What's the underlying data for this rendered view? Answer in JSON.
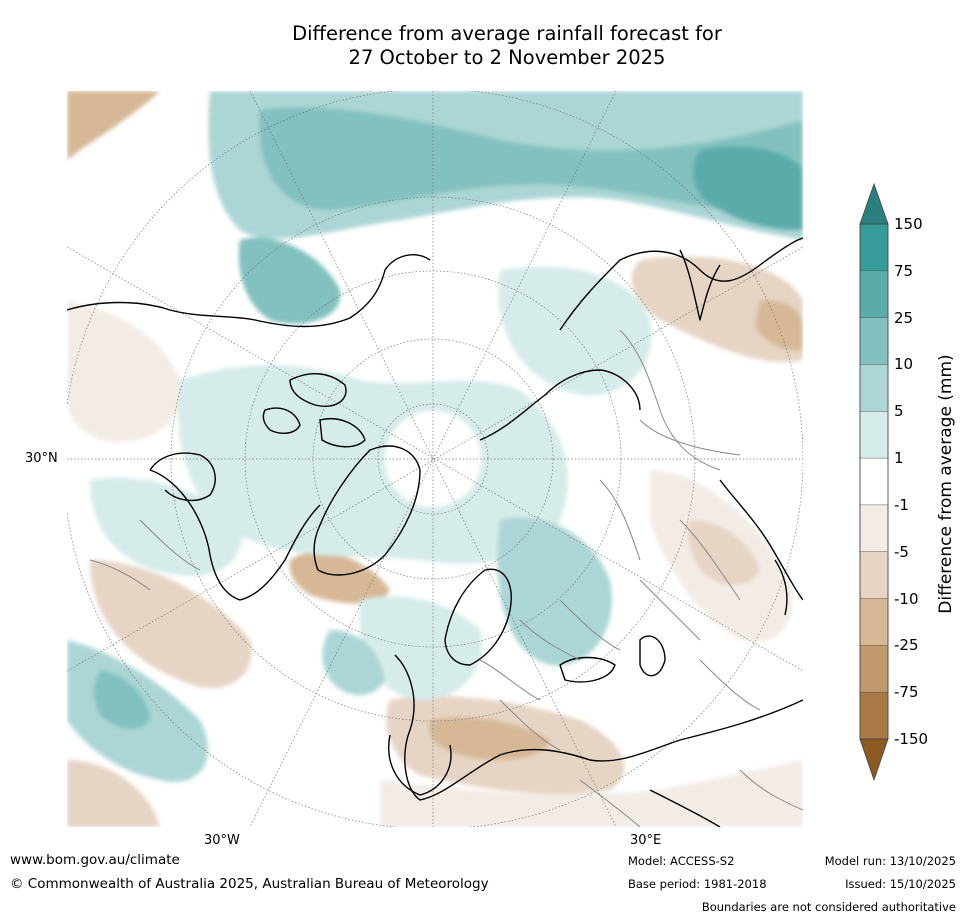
{
  "title": {
    "line1": "Difference from average rainfall forecast for",
    "line2": "27 October to 2 November 2025"
  },
  "map_labels": {
    "lat_label": "30°N",
    "lon_west_label": "30°W",
    "lon_east_label": "30°E"
  },
  "colorbar": {
    "title": "Difference from average (mm)",
    "ticks": [
      "150",
      "75",
      "25",
      "10",
      "5",
      "1",
      "-1",
      "-5",
      "-10",
      "-25",
      "-75",
      "-150"
    ],
    "colors": [
      "#2a7f7f",
      "#359c9a",
      "#5aacab",
      "#82c1c0",
      "#acd6d5",
      "#d6ecea",
      "#ffffff",
      "#f3ece6",
      "#e6d4c4",
      "#d6b896",
      "#c09a6d",
      "#a97a45",
      "#8d5a22"
    ]
  },
  "footer": {
    "website": "www.bom.gov.au/climate",
    "copyright": "© Commonwealth of Australia 2025, Australian Bureau of Meteorology",
    "model": "Model: ACCESS-S2",
    "base_period": "Base period: 1981-2018",
    "model_run": "Model run: 13/10/2025",
    "issued": "Issued: 15/10/2025",
    "disclaimer": "Boundaries are not considered authoritative"
  }
}
